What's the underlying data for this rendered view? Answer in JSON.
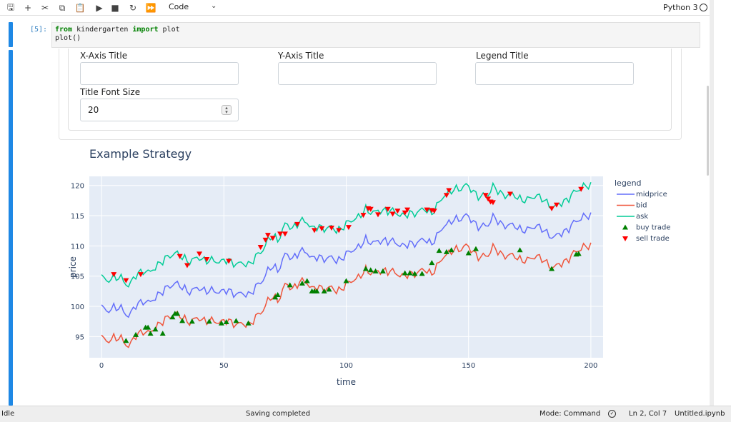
{
  "toolbar": {
    "buttons": [
      {
        "name": "save-icon",
        "glyph": "🖫"
      },
      {
        "name": "add-cell-icon",
        "glyph": "+"
      },
      {
        "name": "cut-icon",
        "glyph": "✂"
      },
      {
        "name": "copy-icon",
        "glyph": "⧉"
      },
      {
        "name": "paste-icon",
        "glyph": "📋"
      },
      {
        "name": "run-icon",
        "glyph": "▶"
      },
      {
        "name": "stop-icon",
        "glyph": "■"
      },
      {
        "name": "restart-icon",
        "glyph": "↻"
      },
      {
        "name": "run-all-icon",
        "glyph": "⏩"
      }
    ],
    "cell_type": "Code",
    "kernel_name": "Python 3"
  },
  "cell": {
    "prompt": "[5]:",
    "code_line1_kw1": "from",
    "code_line1_mod": " kindergarten ",
    "code_line1_kw2": "import",
    "code_line1_rest": " plot",
    "code_line2": "plot()"
  },
  "form": {
    "x_axis_title_label": "X-Axis Title",
    "x_axis_title_value": "",
    "y_axis_title_label": "Y-Axis Title",
    "y_axis_title_value": "",
    "legend_title_label": "Legend Title",
    "legend_title_value": "",
    "title_font_size_label": "Title Font Size",
    "title_font_size_value": "20"
  },
  "colors": {
    "midprice": "#636efa",
    "bid": "#ef553b",
    "ask": "#00cc96",
    "buy_trade": "#008000",
    "sell_trade": "#ff0000",
    "plot_bg": "#e5ecf6"
  },
  "chart_data": {
    "type": "line",
    "title": "Example Strategy",
    "xlabel": "time",
    "ylabel": "price",
    "xlim": [
      -5,
      205
    ],
    "ylim": [
      91.5,
      121.5
    ],
    "xticks": [
      0,
      50,
      100,
      150,
      200
    ],
    "yticks": [
      95,
      100,
      105,
      110,
      115,
      120
    ],
    "grid": true,
    "legend_title": "legend",
    "legend_position": "right",
    "spread": 5,
    "midprice_keypoints": [
      [
        0,
        100
      ],
      [
        2,
        99
      ],
      [
        5,
        100
      ],
      [
        8,
        99.5
      ],
      [
        11,
        98.5
      ],
      [
        14,
        100
      ],
      [
        17,
        101
      ],
      [
        20,
        100.5
      ],
      [
        23,
        102
      ],
      [
        27,
        103
      ],
      [
        30,
        104
      ],
      [
        33,
        103
      ],
      [
        36,
        102.5
      ],
      [
        40,
        103
      ],
      [
        44,
        102.5
      ],
      [
        48,
        102.5
      ],
      [
        52,
        102.5
      ],
      [
        56,
        102
      ],
      [
        60,
        102
      ],
      [
        63,
        103
      ],
      [
        66,
        104.5
      ],
      [
        68,
        106
      ],
      [
        70,
        106.5
      ],
      [
        72,
        106
      ],
      [
        75,
        108.5
      ],
      [
        78,
        108
      ],
      [
        81,
        109
      ],
      [
        84,
        109
      ],
      [
        86,
        108
      ],
      [
        88,
        108
      ],
      [
        91,
        108
      ],
      [
        94,
        108
      ],
      [
        96,
        107.5
      ],
      [
        100,
        108.5
      ],
      [
        103,
        109.5
      ],
      [
        106,
        110
      ],
      [
        108,
        111
      ],
      [
        112,
        110.5
      ],
      [
        116,
        111
      ],
      [
        120,
        110.5
      ],
      [
        124,
        110
      ],
      [
        128,
        110.5
      ],
      [
        132,
        111
      ],
      [
        135,
        110.5
      ],
      [
        138,
        112
      ],
      [
        140,
        113.5
      ],
      [
        143,
        114
      ],
      [
        146,
        114.5
      ],
      [
        149,
        115
      ],
      [
        152,
        114
      ],
      [
        155,
        113
      ],
      [
        158,
        113.5
      ],
      [
        160,
        115
      ],
      [
        163,
        113.5
      ],
      [
        167,
        113.5
      ],
      [
        170,
        113
      ],
      [
        174,
        112.5
      ],
      [
        178,
        113.5
      ],
      [
        182,
        112
      ],
      [
        185,
        111.5
      ],
      [
        188,
        112
      ],
      [
        191,
        113
      ],
      [
        194,
        114
      ],
      [
        197,
        115
      ],
      [
        200,
        114.8
      ]
    ],
    "series": [
      {
        "name": "midprice"
      },
      {
        "name": "bid"
      },
      {
        "name": "ask"
      },
      {
        "name": "buy trade",
        "x": [
          10,
          14,
          18,
          19,
          20,
          22,
          25,
          29,
          30,
          31,
          33,
          37,
          44,
          49,
          51,
          55,
          60,
          71,
          72,
          77,
          82,
          84,
          86,
          87,
          88,
          91,
          93,
          100,
          108,
          110,
          112,
          115,
          124,
          126,
          128,
          131,
          135,
          138,
          141,
          143,
          150,
          153,
          171,
          184,
          194,
          195
        ],
        "y": [
          94.3,
          95.3,
          96.5,
          96.5,
          95.5,
          96.2,
          95.5,
          98.2,
          98.8,
          98.8,
          97.6,
          97.5,
          97.5,
          97.2,
          97.4,
          97.6,
          97.2,
          101.5,
          101.9,
          103.5,
          103.8,
          104.2,
          102.5,
          102.5,
          102.5,
          102.5,
          102.8,
          104.2,
          106.2,
          106,
          105.8,
          105.8,
          105.5,
          105.5,
          105.4,
          105.4,
          107.2,
          109.2,
          109,
          109.3,
          108.8,
          109.5,
          109.3,
          106.2,
          108.6,
          108.7
        ]
      },
      {
        "name": "sell trade",
        "x": [
          5,
          10,
          16,
          32,
          35,
          40,
          43,
          52,
          65,
          67,
          68,
          70,
          73,
          75,
          80,
          87,
          90,
          94,
          97,
          101,
          107,
          109,
          110,
          113,
          117,
          119,
          121,
          124,
          125,
          133,
          135,
          136,
          141,
          142,
          157,
          158,
          159,
          160,
          167,
          184,
          186,
          196
        ],
        "y": [
          105.3,
          104.3,
          105.3,
          108.3,
          106.8,
          108.7,
          107.8,
          107.5,
          109.8,
          111,
          111.8,
          111.3,
          112,
          112,
          113.6,
          112.6,
          112.9,
          113,
          112.6,
          113.1,
          115.1,
          116.2,
          116.1,
          115.2,
          116.1,
          115.3,
          115.8,
          115.5,
          116,
          116,
          115.9,
          115.8,
          118.4,
          119.2,
          118.4,
          117.8,
          117.3,
          117.2,
          118.6,
          116.2,
          116.8,
          119.4
        ]
      }
    ]
  },
  "status": {
    "mode_left": "Idle",
    "save_state": "Saving completed",
    "mode": "Mode: Command",
    "position": "Ln 2, Col 7",
    "filename": "Untitled.ipynb"
  }
}
